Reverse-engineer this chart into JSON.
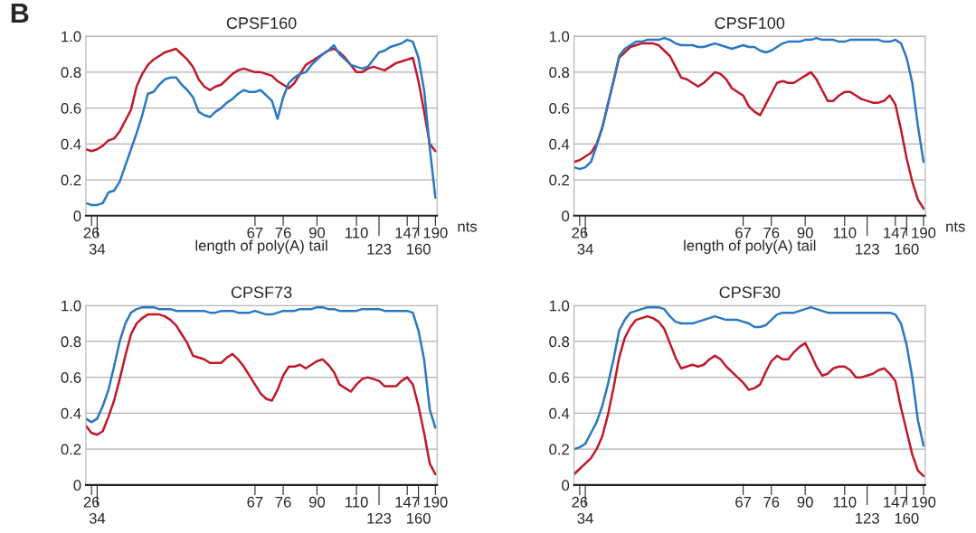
{
  "chart_data": [
    {
      "type": "line",
      "title": "CPSF160",
      "xlabel": "length of poly(A) tail",
      "annotations": [
        "nts",
        "B"
      ],
      "categories": [
        null,
        "26",
        "34",
        null,
        null,
        null,
        null,
        null,
        null,
        null,
        null,
        null,
        null,
        null,
        null,
        null,
        null,
        null,
        null,
        null,
        null,
        null,
        null,
        null,
        null,
        null,
        null,
        null,
        null,
        null,
        "67",
        null,
        null,
        null,
        null,
        "76",
        null,
        null,
        null,
        null,
        null,
        "90",
        null,
        null,
        null,
        null,
        null,
        null,
        "110",
        null,
        null,
        null,
        "123",
        null,
        null,
        null,
        null,
        "147",
        null,
        "160",
        null,
        null,
        "190"
      ],
      "ylim": [
        0,
        1
      ],
      "yticks": [
        0,
        {
          "value": 0.2,
          "label": "0.2"
        },
        {
          "value": 0.4,
          "label": "0.4"
        },
        {
          "value": 0.6,
          "label": "0.6"
        },
        {
          "value": 0.8,
          "label": "0.8"
        },
        {
          "value": 1,
          "label": "1.0"
        }
      ],
      "grid": "y",
      "line_style": "solid",
      "series": [
        {
          "color": "#c0182a",
          "values": [
            0.37,
            0.36,
            0.37,
            0.39,
            0.42,
            0.43,
            0.47,
            0.53,
            0.59,
            0.72,
            0.79,
            0.84,
            0.87,
            0.89,
            0.91,
            0.92,
            0.93,
            0.9,
            0.87,
            0.83,
            0.76,
            0.72,
            0.7,
            0.72,
            0.73,
            0.76,
            0.79,
            0.81,
            0.82,
            0.81,
            0.8,
            0.8,
            0.79,
            0.78,
            0.75,
            0.73,
            0.71,
            0.74,
            0.79,
            0.84,
            0.86,
            0.88,
            0.9,
            0.92,
            0.93,
            0.91,
            0.88,
            0.84,
            0.8,
            0.8,
            0.82,
            0.83,
            0.82,
            0.81,
            0.83,
            0.85,
            0.86,
            0.87,
            0.88,
            0.75,
            0.58,
            0.4,
            0.36
          ]
        },
        {
          "color": "#2a78c2",
          "values": [
            0.07,
            0.06,
            0.06,
            0.07,
            0.13,
            0.14,
            0.19,
            0.28,
            0.37,
            0.46,
            0.56,
            0.68,
            0.69,
            0.73,
            0.76,
            0.77,
            0.77,
            0.73,
            0.7,
            0.66,
            0.58,
            0.56,
            0.55,
            0.58,
            0.6,
            0.63,
            0.65,
            0.68,
            0.7,
            0.69,
            0.69,
            0.7,
            0.67,
            0.64,
            0.54,
            0.66,
            0.74,
            0.77,
            0.79,
            0.8,
            0.84,
            0.87,
            0.9,
            0.92,
            0.95,
            0.9,
            0.87,
            0.84,
            0.83,
            0.82,
            0.83,
            0.87,
            0.91,
            0.92,
            0.94,
            0.95,
            0.96,
            0.98,
            0.97,
            0.88,
            0.7,
            0.38,
            0.1
          ]
        }
      ]
    },
    {
      "type": "line",
      "title": "CPSF100",
      "xlabel": "length of poly(A) tail",
      "annotations": [
        "nts"
      ],
      "categories": [
        null,
        "26",
        "34",
        null,
        null,
        null,
        null,
        null,
        null,
        null,
        null,
        null,
        null,
        null,
        null,
        null,
        null,
        null,
        null,
        null,
        null,
        null,
        null,
        null,
        null,
        null,
        null,
        null,
        null,
        null,
        "67",
        null,
        null,
        null,
        null,
        "76",
        null,
        null,
        null,
        null,
        null,
        "90",
        null,
        null,
        null,
        null,
        null,
        null,
        "110",
        null,
        null,
        null,
        "123",
        null,
        null,
        null,
        null,
        "147",
        null,
        "160",
        null,
        null,
        "190"
      ],
      "ylim": [
        0,
        1
      ],
      "yticks": [
        0,
        {
          "value": 0.2,
          "label": "0.2"
        },
        {
          "value": 0.4,
          "label": "0.4"
        },
        {
          "value": 0.6,
          "label": "0.6"
        },
        {
          "value": 0.8,
          "label": "0.8"
        },
        {
          "value": 1,
          "label": "1.0"
        }
      ],
      "grid": "y",
      "line_style": "solid",
      "series": [
        {
          "color": "#c0182a",
          "values": [
            0.3,
            0.31,
            0.33,
            0.35,
            0.4,
            0.49,
            0.62,
            0.75,
            0.88,
            0.91,
            0.94,
            0.95,
            0.96,
            0.96,
            0.96,
            0.95,
            0.92,
            0.89,
            0.83,
            0.77,
            0.76,
            0.74,
            0.72,
            0.74,
            0.77,
            0.8,
            0.79,
            0.76,
            0.71,
            0.69,
            0.67,
            0.61,
            0.58,
            0.56,
            0.62,
            0.68,
            0.74,
            0.75,
            0.74,
            0.74,
            0.76,
            0.78,
            0.8,
            0.76,
            0.7,
            0.64,
            0.64,
            0.67,
            0.69,
            0.69,
            0.67,
            0.65,
            0.64,
            0.63,
            0.63,
            0.64,
            0.67,
            0.62,
            0.48,
            0.32,
            0.19,
            0.09,
            0.04
          ]
        },
        {
          "color": "#2a78c2",
          "values": [
            0.27,
            0.26,
            0.27,
            0.3,
            0.39,
            0.49,
            0.62,
            0.75,
            0.89,
            0.93,
            0.95,
            0.97,
            0.97,
            0.98,
            0.98,
            0.98,
            0.99,
            0.98,
            0.96,
            0.95,
            0.95,
            0.95,
            0.94,
            0.94,
            0.95,
            0.96,
            0.95,
            0.94,
            0.93,
            0.94,
            0.95,
            0.94,
            0.94,
            0.92,
            0.91,
            0.92,
            0.94,
            0.96,
            0.97,
            0.97,
            0.97,
            0.98,
            0.98,
            0.99,
            0.98,
            0.98,
            0.98,
            0.97,
            0.97,
            0.98,
            0.98,
            0.98,
            0.98,
            0.98,
            0.98,
            0.97,
            0.97,
            0.98,
            0.96,
            0.88,
            0.74,
            0.5,
            0.3
          ]
        }
      ]
    },
    {
      "type": "line",
      "title": "CPSF73",
      "categories": [
        null,
        "26",
        "34",
        null,
        null,
        null,
        null,
        null,
        null,
        null,
        null,
        null,
        null,
        null,
        null,
        null,
        null,
        null,
        null,
        null,
        null,
        null,
        null,
        null,
        null,
        null,
        null,
        null,
        null,
        null,
        "67",
        null,
        null,
        null,
        null,
        "76",
        null,
        null,
        null,
        null,
        null,
        "90",
        null,
        null,
        null,
        null,
        null,
        null,
        "110",
        null,
        null,
        null,
        "123",
        null,
        null,
        null,
        null,
        "147",
        null,
        "160",
        null,
        null,
        "190"
      ],
      "ylim": [
        0,
        1
      ],
      "yticks": [
        0,
        {
          "value": 0.2,
          "label": "0.2"
        },
        {
          "value": 0.4,
          "label": "0.4"
        },
        {
          "value": 0.6,
          "label": "0.6"
        },
        {
          "value": 0.8,
          "label": "0.8"
        },
        {
          "value": 1,
          "label": "1.0"
        }
      ],
      "grid": "y",
      "line_style": "solid",
      "series": [
        {
          "color": "#c0182a",
          "values": [
            0.33,
            0.29,
            0.28,
            0.3,
            0.38,
            0.47,
            0.59,
            0.72,
            0.84,
            0.9,
            0.93,
            0.95,
            0.95,
            0.95,
            0.94,
            0.92,
            0.89,
            0.84,
            0.79,
            0.72,
            0.71,
            0.7,
            0.68,
            0.68,
            0.68,
            0.71,
            0.73,
            0.7,
            0.66,
            0.61,
            0.56,
            0.51,
            0.48,
            0.47,
            0.53,
            0.61,
            0.66,
            0.66,
            0.67,
            0.65,
            0.67,
            0.69,
            0.7,
            0.67,
            0.63,
            0.56,
            0.54,
            0.52,
            0.56,
            0.59,
            0.6,
            0.59,
            0.58,
            0.55,
            0.55,
            0.55,
            0.58,
            0.6,
            0.56,
            0.44,
            0.29,
            0.12,
            0.06
          ]
        },
        {
          "color": "#2a78c2",
          "values": [
            0.37,
            0.35,
            0.37,
            0.44,
            0.53,
            0.66,
            0.8,
            0.9,
            0.96,
            0.98,
            0.99,
            0.99,
            0.99,
            0.98,
            0.98,
            0.98,
            0.97,
            0.97,
            0.97,
            0.97,
            0.97,
            0.97,
            0.96,
            0.96,
            0.97,
            0.97,
            0.97,
            0.96,
            0.96,
            0.96,
            0.97,
            0.96,
            0.95,
            0.95,
            0.96,
            0.97,
            0.97,
            0.97,
            0.98,
            0.98,
            0.98,
            0.99,
            0.99,
            0.98,
            0.98,
            0.97,
            0.97,
            0.97,
            0.97,
            0.98,
            0.98,
            0.98,
            0.98,
            0.97,
            0.97,
            0.97,
            0.97,
            0.97,
            0.96,
            0.86,
            0.7,
            0.42,
            0.32
          ]
        }
      ]
    },
    {
      "type": "line",
      "title": "CPSF30",
      "categories": [
        null,
        "26",
        "34",
        null,
        null,
        null,
        null,
        null,
        null,
        null,
        null,
        null,
        null,
        null,
        null,
        null,
        null,
        null,
        null,
        null,
        null,
        null,
        null,
        null,
        null,
        null,
        null,
        null,
        null,
        null,
        "67",
        null,
        null,
        null,
        null,
        "76",
        null,
        null,
        null,
        null,
        null,
        "90",
        null,
        null,
        null,
        null,
        null,
        null,
        "110",
        null,
        null,
        null,
        "123",
        null,
        null,
        null,
        null,
        "147",
        null,
        "160",
        null,
        null,
        "190"
      ],
      "ylim": [
        0,
        1
      ],
      "yticks": [
        0,
        {
          "value": 0.2,
          "label": "0.2"
        },
        {
          "value": 0.4,
          "label": "0.4"
        },
        {
          "value": 0.6,
          "label": "0.6"
        },
        {
          "value": 0.8,
          "label": "0.8"
        },
        {
          "value": 1,
          "label": "1.0"
        }
      ],
      "grid": "y",
      "line_style": "solid",
      "series": [
        {
          "color": "#c0182a",
          "values": [
            0.06,
            0.09,
            0.12,
            0.15,
            0.2,
            0.27,
            0.39,
            0.54,
            0.71,
            0.82,
            0.88,
            0.92,
            0.93,
            0.94,
            0.93,
            0.91,
            0.87,
            0.79,
            0.71,
            0.65,
            0.66,
            0.67,
            0.66,
            0.67,
            0.7,
            0.72,
            0.7,
            0.66,
            0.63,
            0.6,
            0.57,
            0.53,
            0.54,
            0.56,
            0.63,
            0.69,
            0.72,
            0.7,
            0.7,
            0.74,
            0.77,
            0.79,
            0.73,
            0.66,
            0.61,
            0.62,
            0.65,
            0.66,
            0.66,
            0.64,
            0.6,
            0.6,
            0.61,
            0.62,
            0.64,
            0.65,
            0.62,
            0.58,
            0.43,
            0.3,
            0.17,
            0.08,
            0.05
          ]
        },
        {
          "color": "#2a78c2",
          "values": [
            0.2,
            0.21,
            0.23,
            0.29,
            0.35,
            0.44,
            0.56,
            0.7,
            0.86,
            0.92,
            0.96,
            0.97,
            0.98,
            0.99,
            0.99,
            0.99,
            0.98,
            0.94,
            0.91,
            0.9,
            0.9,
            0.9,
            0.91,
            0.92,
            0.93,
            0.94,
            0.93,
            0.92,
            0.92,
            0.92,
            0.91,
            0.9,
            0.88,
            0.88,
            0.89,
            0.92,
            0.95,
            0.96,
            0.96,
            0.96,
            0.97,
            0.98,
            0.99,
            0.98,
            0.97,
            0.96,
            0.96,
            0.96,
            0.96,
            0.96,
            0.96,
            0.96,
            0.96,
            0.96,
            0.96,
            0.96,
            0.96,
            0.95,
            0.9,
            0.78,
            0.6,
            0.36,
            0.22
          ]
        }
      ]
    }
  ]
}
